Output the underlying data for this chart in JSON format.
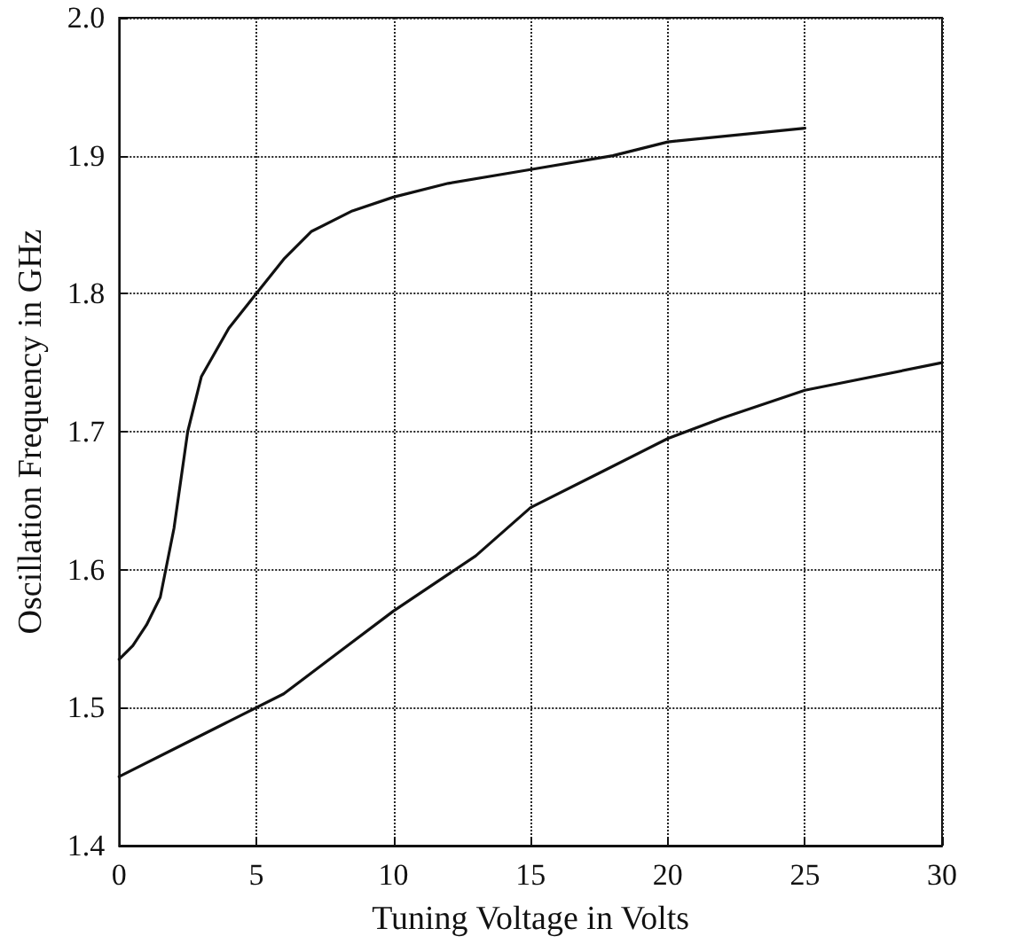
{
  "chart_data": {
    "type": "line",
    "xlabel": "Tuning Voltage in Volts",
    "ylabel": "Oscillation Frequency in GHz",
    "series": [
      {
        "color": "#111111",
        "x": [
          0,
          0.5,
          1,
          1.5,
          2,
          2.5,
          3,
          4,
          5,
          6,
          7,
          8.5,
          10,
          12,
          15,
          18,
          20,
          25
        ],
        "values": [
          1.535,
          1.545,
          1.56,
          1.58,
          1.63,
          1.7,
          1.74,
          1.775,
          1.8,
          1.825,
          1.845,
          1.86,
          1.87,
          1.88,
          1.89,
          1.9,
          1.91,
          1.92
        ]
      },
      {
        "color": "#111111",
        "x": [
          0,
          2,
          4,
          6,
          8,
          10,
          13,
          15,
          17.5,
          20,
          22,
          25,
          30
        ],
        "values": [
          1.45,
          1.47,
          1.49,
          1.51,
          1.54,
          1.57,
          1.61,
          1.645,
          1.67,
          1.695,
          1.71,
          1.73,
          1.75
        ]
      }
    ],
    "xlim": [
      0,
      30
    ],
    "xticks": [
      0,
      5,
      10,
      15,
      20,
      25,
      30
    ],
    "ylim": [
      1.4,
      2.0
    ],
    "yticks": [
      {
        "value": 1.4,
        "label": "1.4"
      },
      1.5,
      1.6,
      1.7,
      1.8,
      1.9,
      {
        "value": 2,
        "label": "2.0"
      }
    ],
    "grid": true,
    "line_style": "solid",
    "marker": "none"
  }
}
